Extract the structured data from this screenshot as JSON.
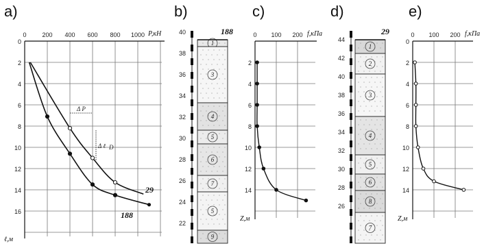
{
  "panels": {
    "a": {
      "label": "a)",
      "x_unit": "P,кН",
      "y_unit": "ℓ,м",
      "x_ticks": [
        "0",
        "200",
        "400",
        "600",
        "800",
        "1000"
      ],
      "y_ticks": [
        "0",
        "2",
        "4",
        "6",
        "8",
        "10",
        "12",
        "14",
        "16"
      ],
      "annotations": {
        "dp": "Δ P",
        "dl": "Δ ℓ",
        "dl_sub": "D"
      },
      "curves": [
        {
          "name": "29",
          "marker": "open",
          "points": [
            [
              50,
              2
            ],
            [
              400,
              8.2
            ],
            [
              600,
              11
            ],
            [
              800,
              13.3
            ],
            [
              1050,
              14.4
            ]
          ]
        },
        {
          "name": "188",
          "marker": "filled",
          "points": [
            [
              40,
              2
            ],
            [
              200,
              7.1
            ],
            [
              400,
              10.6
            ],
            [
              600,
              13.5
            ],
            [
              800,
              14.5
            ],
            [
              1100,
              15.4
            ]
          ]
        }
      ]
    },
    "b": {
      "label": "b)",
      "id": "188",
      "y_ticks": [
        "40",
        "38",
        "36",
        "34",
        "32",
        "30",
        "28",
        "26",
        "24",
        "22"
      ],
      "layers": [
        "1",
        "3",
        "4",
        "5",
        "6",
        "7",
        "5",
        "9"
      ]
    },
    "c": {
      "label": "c)",
      "x_unit": "f,кПа",
      "y_unit": "Z,м",
      "x_ticks": [
        "0",
        "100",
        "200"
      ],
      "y_ticks": [
        "2",
        "4",
        "6",
        "8",
        "10",
        "12",
        "14"
      ],
      "points": [
        [
          10,
          2
        ],
        [
          10,
          4
        ],
        [
          10,
          6
        ],
        [
          10,
          8
        ],
        [
          20,
          10
        ],
        [
          40,
          12
        ],
        [
          100,
          14
        ],
        [
          240,
          15
        ]
      ]
    },
    "d": {
      "label": "d)",
      "id": "29",
      "y_ticks": [
        "44",
        "42",
        "40",
        "38",
        "36",
        "34",
        "32",
        "30",
        "28",
        "26"
      ],
      "layers": [
        "1",
        "2",
        "3",
        "4",
        "5",
        "6",
        "8",
        "7"
      ]
    },
    "e": {
      "label": "e)",
      "x_unit": "f,кПа",
      "y_unit": "Z,м",
      "x_ticks": [
        "0",
        "100",
        "200"
      ],
      "y_ticks": [
        "0",
        "2",
        "4",
        "6",
        "8",
        "10",
        "12",
        "14"
      ],
      "points": [
        [
          10,
          2
        ],
        [
          15,
          4
        ],
        [
          15,
          6
        ],
        [
          15,
          8
        ],
        [
          25,
          10
        ],
        [
          50,
          12
        ],
        [
          100,
          13.2
        ],
        [
          240,
          14
        ]
      ]
    }
  }
}
